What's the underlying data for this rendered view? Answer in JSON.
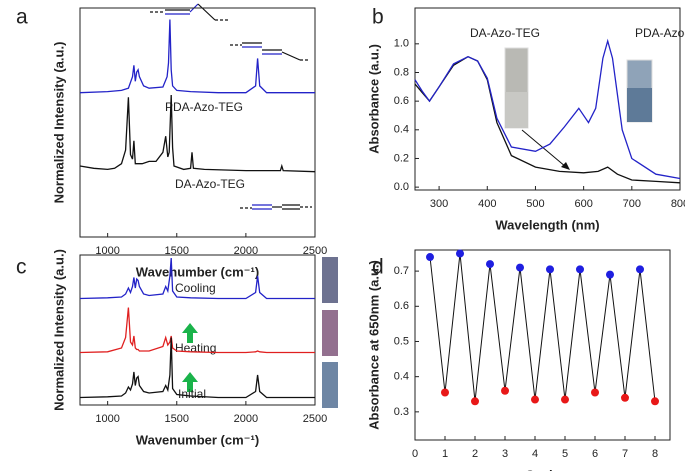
{
  "chart_data": [
    {
      "type": "line",
      "panel": "a",
      "xlabel": "Wavenumber (cm⁻¹)",
      "ylabel": "Normalized Intensity (a.u.)",
      "xlim": [
        800,
        2500
      ],
      "xticks": [
        1000,
        1500,
        2000,
        2500
      ],
      "ylim": [
        0,
        10
      ],
      "annotations": [
        "PDA-Azo-TEG",
        "DA-Azo-TEG"
      ],
      "series": [
        {
          "name": "PDA-Azo-TEG",
          "color": "#2323c8",
          "x": [
            800,
            1000,
            1100,
            1150,
            1180,
            1190,
            1200,
            1210,
            1220,
            1230,
            1260,
            1300,
            1400,
            1430,
            1440,
            1450,
            1460,
            1470,
            1500,
            1600,
            1800,
            2000,
            2070,
            2085,
            2100,
            2150,
            2500
          ],
          "values": [
            6.3,
            6.35,
            6.4,
            6.5,
            7.0,
            7.5,
            6.8,
            7.2,
            7.3,
            7.0,
            6.6,
            6.5,
            6.55,
            7.0,
            7.6,
            9.5,
            7.3,
            6.6,
            6.4,
            6.35,
            6.3,
            6.3,
            6.6,
            7.8,
            6.6,
            6.3,
            6.3
          ]
        },
        {
          "name": "DA-Azo-TEG",
          "color": "#111111",
          "x": [
            800,
            900,
            1000,
            1050,
            1100,
            1130,
            1150,
            1165,
            1180,
            1190,
            1200,
            1250,
            1300,
            1350,
            1400,
            1420,
            1435,
            1445,
            1460,
            1470,
            1480,
            1550,
            1600,
            1610,
            1620,
            1700,
            2000,
            2250,
            2260,
            2270,
            2500
          ],
          "values": [
            3.1,
            3.0,
            2.95,
            3.0,
            3.2,
            3.8,
            6.1,
            3.6,
            3.4,
            4.2,
            3.2,
            3.2,
            3.3,
            3.3,
            3.7,
            4.4,
            3.5,
            3.7,
            6.2,
            3.9,
            3.1,
            2.95,
            3.0,
            3.7,
            3.0,
            2.95,
            2.9,
            2.9,
            3.1,
            2.9,
            2.85
          ]
        }
      ]
    },
    {
      "type": "line",
      "panel": "b",
      "xlabel": "Wavelength (nm)",
      "ylabel": "Absorbance (a.u.)",
      "xlim": [
        250,
        800
      ],
      "xticks": [
        300,
        400,
        500,
        600,
        700,
        800
      ],
      "ylim": [
        -0.02,
        1.25
      ],
      "yticks": [
        {
          "value": 0,
          "label": "0.0"
        },
        0.2,
        0.4,
        0.6,
        0.8,
        {
          "value": 1,
          "label": "1.0"
        }
      ],
      "annotations": [
        "DA-Azo-TEG",
        "PDA-Azo-TEG"
      ],
      "series": [
        {
          "name": "DA-Azo-TEG",
          "color": "#111111",
          "x": [
            250,
            265,
            280,
            300,
            330,
            360,
            380,
            400,
            420,
            450,
            500,
            550,
            600,
            630,
            650,
            670,
            700,
            750,
            800
          ],
          "values": [
            0.72,
            0.66,
            0.6,
            0.7,
            0.85,
            0.91,
            0.88,
            0.75,
            0.45,
            0.22,
            0.14,
            0.11,
            0.1,
            0.11,
            0.14,
            0.09,
            0.05,
            0.04,
            0.03
          ]
        },
        {
          "name": "PDA-Azo-TEG",
          "color": "#2323c8",
          "x": [
            250,
            265,
            280,
            300,
            330,
            360,
            380,
            400,
            420,
            450,
            500,
            530,
            560,
            590,
            610,
            625,
            640,
            650,
            660,
            680,
            700,
            750,
            800
          ],
          "values": [
            0.75,
            0.67,
            0.6,
            0.7,
            0.86,
            0.91,
            0.88,
            0.76,
            0.48,
            0.28,
            0.25,
            0.3,
            0.42,
            0.55,
            0.45,
            0.55,
            0.9,
            1.02,
            0.9,
            0.4,
            0.2,
            0.09,
            0.06
          ]
        }
      ]
    },
    {
      "type": "line",
      "panel": "c",
      "xlabel": "Wavenumber (cm⁻¹)",
      "ylabel": "Normalized Intensity (a.u.)",
      "xlim": [
        800,
        2500
      ],
      "xticks": [
        1000,
        1500,
        2000,
        2500
      ],
      "ylim": [
        0,
        10
      ],
      "annotations": [
        "Cooling",
        "Heating",
        "Initial"
      ],
      "x": [
        800,
        1000,
        1100,
        1130,
        1150,
        1165,
        1180,
        1190,
        1200,
        1210,
        1220,
        1230,
        1260,
        1300,
        1400,
        1420,
        1435,
        1450,
        1460,
        1470,
        1500,
        1600,
        1800,
        2000,
        2070,
        2085,
        2100,
        2150,
        2500
      ],
      "series": [
        {
          "name": "Cooling",
          "color": "#2323c8",
          "values": [
            7.1,
            7.15,
            7.2,
            7.4,
            7.8,
            7.5,
            7.9,
            8.5,
            7.8,
            8.4,
            8.3,
            7.9,
            7.4,
            7.3,
            7.4,
            7.9,
            7.6,
            8.6,
            9.8,
            7.6,
            7.2,
            7.15,
            7.1,
            7.1,
            7.5,
            8.6,
            7.5,
            7.1,
            7.1
          ]
        },
        {
          "name": "Heating",
          "color": "#e02020",
          "values": [
            3.5,
            3.55,
            3.8,
            4.5,
            6.5,
            4.2,
            4.0,
            4.6,
            3.8,
            3.7,
            3.7,
            3.6,
            3.6,
            3.6,
            3.9,
            4.5,
            4.0,
            4.2,
            4.6,
            3.8,
            3.6,
            3.55,
            3.5,
            3.5,
            3.55,
            3.6,
            3.55,
            3.5,
            3.5
          ]
        },
        {
          "name": "Initial",
          "color": "#111111",
          "values": [
            0.5,
            0.55,
            0.6,
            0.8,
            1.2,
            1.0,
            1.4,
            2.2,
            1.3,
            1.8,
            1.9,
            1.3,
            0.9,
            0.8,
            0.9,
            1.3,
            1.0,
            2.0,
            4.5,
            1.1,
            0.7,
            0.6,
            0.5,
            0.5,
            0.9,
            2.0,
            0.9,
            0.5,
            0.5
          ]
        }
      ]
    },
    {
      "type": "scatter",
      "panel": "d",
      "xlabel": "Cycle",
      "ylabel": "Absorbance at 650nm (a.u.)",
      "xlim": [
        0,
        8.5
      ],
      "xticks": [
        0,
        1,
        2,
        3,
        4,
        5,
        6,
        7,
        8
      ],
      "ylim": [
        0.22,
        0.76
      ],
      "yticks": [
        0.3,
        0.4,
        0.5,
        0.6,
        0.7
      ],
      "line_color": "#111111",
      "series": [
        {
          "color": "#1f1fe0",
          "x": [
            0.5,
            1.5,
            2.5,
            3.5,
            4.5,
            5.5,
            6.5,
            7.5
          ],
          "values": [
            0.74,
            0.75,
            0.72,
            0.71,
            0.705,
            0.705,
            0.69,
            0.705
          ]
        },
        {
          "color": "#e81818",
          "x": [
            1,
            2,
            3,
            4,
            5,
            6,
            7,
            8
          ],
          "values": [
            0.355,
            0.33,
            0.36,
            0.335,
            0.335,
            0.355,
            0.34,
            0.33
          ]
        }
      ]
    }
  ]
}
